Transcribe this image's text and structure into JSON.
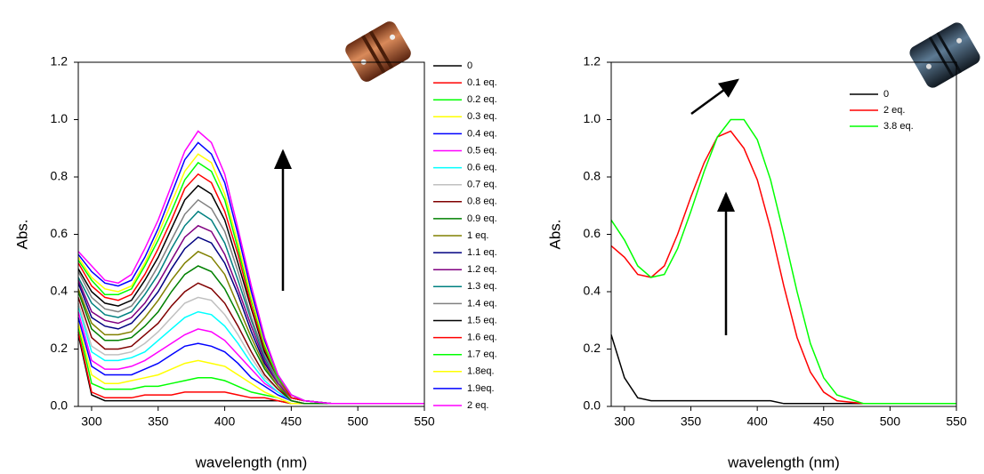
{
  "chart_data": [
    {
      "type": "line",
      "x_label": "wavelength (nm)",
      "y_label": "Abs.",
      "xlim": [
        290,
        550
      ],
      "ylim": [
        0,
        1.2
      ],
      "xticks": [
        300,
        350,
        400,
        450,
        500,
        550
      ],
      "yticks": [
        {
          "value": 0,
          "label": "0.0"
        },
        0.2,
        0.4,
        0.6,
        0.8,
        {
          "value": 1,
          "label": "1.0"
        },
        1.2
      ],
      "legend": "outside right",
      "x": [
        290,
        300,
        310,
        320,
        330,
        340,
        350,
        360,
        370,
        380,
        390,
        400,
        410,
        420,
        430,
        440,
        450,
        460,
        480,
        550
      ],
      "series": [
        {
          "name": "0",
          "color": "#000000",
          "values": [
            0.25,
            0.04,
            0.02,
            0.02,
            0.02,
            0.02,
            0.02,
            0.02,
            0.02,
            0.02,
            0.02,
            0.02,
            0.02,
            0.02,
            0.02,
            0.02,
            0.01,
            0.01,
            0.01,
            0.01
          ]
        },
        {
          "name": "0.1 eq.",
          "color": "#ff0000",
          "values": [
            0.26,
            0.05,
            0.03,
            0.03,
            0.03,
            0.04,
            0.04,
            0.04,
            0.05,
            0.05,
            0.05,
            0.05,
            0.04,
            0.03,
            0.03,
            0.02,
            0.01,
            0.01,
            0.01,
            0.01
          ]
        },
        {
          "name": "0.2 eq.",
          "color": "#00ff00",
          "values": [
            0.28,
            0.08,
            0.06,
            0.06,
            0.06,
            0.07,
            0.07,
            0.08,
            0.09,
            0.1,
            0.1,
            0.09,
            0.07,
            0.05,
            0.04,
            0.03,
            0.01,
            0.01,
            0.01,
            0.01
          ]
        },
        {
          "name": "0.3 eq.",
          "color": "#ffff00",
          "values": [
            0.29,
            0.11,
            0.08,
            0.08,
            0.09,
            0.1,
            0.11,
            0.13,
            0.15,
            0.16,
            0.15,
            0.14,
            0.11,
            0.08,
            0.05,
            0.03,
            0.01,
            0.01,
            0.01,
            0.01
          ]
        },
        {
          "name": "0.4 eq.",
          "color": "#0000ff",
          "values": [
            0.31,
            0.14,
            0.11,
            0.11,
            0.11,
            0.13,
            0.15,
            0.18,
            0.21,
            0.22,
            0.21,
            0.19,
            0.15,
            0.1,
            0.07,
            0.04,
            0.02,
            0.01,
            0.01,
            0.01
          ]
        },
        {
          "name": "0.5 eq.",
          "color": "#ff00ff",
          "values": [
            0.33,
            0.16,
            0.13,
            0.13,
            0.14,
            0.16,
            0.19,
            0.22,
            0.25,
            0.27,
            0.26,
            0.23,
            0.18,
            0.13,
            0.08,
            0.05,
            0.02,
            0.01,
            0.01,
            0.01
          ]
        },
        {
          "name": "0.6 eq.",
          "color": "#00ffff",
          "values": [
            0.35,
            0.19,
            0.16,
            0.16,
            0.17,
            0.19,
            0.23,
            0.27,
            0.31,
            0.33,
            0.32,
            0.28,
            0.22,
            0.15,
            0.09,
            0.05,
            0.02,
            0.01,
            0.01,
            0.01
          ]
        },
        {
          "name": "0.7 eq.",
          "color": "#c0c0c0",
          "values": [
            0.36,
            0.21,
            0.18,
            0.18,
            0.19,
            0.22,
            0.26,
            0.31,
            0.36,
            0.38,
            0.37,
            0.32,
            0.25,
            0.17,
            0.1,
            0.06,
            0.02,
            0.01,
            0.01,
            0.01
          ]
        },
        {
          "name": "0.8 eq.",
          "color": "#800000",
          "values": [
            0.38,
            0.24,
            0.2,
            0.2,
            0.21,
            0.25,
            0.29,
            0.35,
            0.4,
            0.43,
            0.41,
            0.36,
            0.28,
            0.19,
            0.11,
            0.06,
            0.02,
            0.01,
            0.01,
            0.01
          ]
        },
        {
          "name": "0.9 eq.",
          "color": "#008000",
          "values": [
            0.4,
            0.27,
            0.23,
            0.23,
            0.24,
            0.28,
            0.33,
            0.4,
            0.46,
            0.49,
            0.47,
            0.41,
            0.32,
            0.22,
            0.13,
            0.07,
            0.02,
            0.01,
            0.01,
            0.01
          ]
        },
        {
          "name": "1 eq.",
          "color": "#808000",
          "values": [
            0.41,
            0.29,
            0.25,
            0.25,
            0.26,
            0.31,
            0.37,
            0.44,
            0.5,
            0.54,
            0.52,
            0.46,
            0.35,
            0.24,
            0.14,
            0.07,
            0.03,
            0.02,
            0.01,
            0.01
          ]
        },
        {
          "name": "1.1 eq.",
          "color": "#000080",
          "values": [
            0.43,
            0.31,
            0.28,
            0.27,
            0.29,
            0.34,
            0.4,
            0.48,
            0.55,
            0.59,
            0.57,
            0.5,
            0.39,
            0.26,
            0.15,
            0.08,
            0.03,
            0.02,
            0.01,
            0.01
          ]
        },
        {
          "name": "1.2 eq.",
          "color": "#800080",
          "values": [
            0.44,
            0.33,
            0.3,
            0.29,
            0.31,
            0.36,
            0.43,
            0.51,
            0.59,
            0.63,
            0.61,
            0.53,
            0.41,
            0.28,
            0.16,
            0.08,
            0.03,
            0.02,
            0.01,
            0.01
          ]
        },
        {
          "name": "1.3 eq.",
          "color": "#008080",
          "values": [
            0.45,
            0.36,
            0.32,
            0.31,
            0.33,
            0.39,
            0.46,
            0.55,
            0.63,
            0.68,
            0.65,
            0.57,
            0.44,
            0.3,
            0.17,
            0.09,
            0.03,
            0.02,
            0.01,
            0.01
          ]
        },
        {
          "name": "1.4 eq.",
          "color": "#808080",
          "values": [
            0.47,
            0.38,
            0.34,
            0.33,
            0.35,
            0.41,
            0.49,
            0.58,
            0.67,
            0.72,
            0.69,
            0.61,
            0.47,
            0.31,
            0.18,
            0.09,
            0.03,
            0.02,
            0.01,
            0.01
          ]
        },
        {
          "name": "1.5 eq.",
          "color": "#000000",
          "values": [
            0.48,
            0.4,
            0.36,
            0.35,
            0.37,
            0.44,
            0.52,
            0.62,
            0.72,
            0.77,
            0.74,
            0.65,
            0.5,
            0.34,
            0.19,
            0.1,
            0.03,
            0.02,
            0.01,
            0.01
          ]
        },
        {
          "name": "1.6 eq.",
          "color": "#ff0000",
          "values": [
            0.5,
            0.42,
            0.38,
            0.37,
            0.39,
            0.46,
            0.55,
            0.65,
            0.76,
            0.81,
            0.78,
            0.68,
            0.53,
            0.35,
            0.2,
            0.1,
            0.03,
            0.02,
            0.01,
            0.01
          ]
        },
        {
          "name": "1.7 eq.",
          "color": "#00ff00",
          "values": [
            0.51,
            0.44,
            0.39,
            0.39,
            0.41,
            0.49,
            0.58,
            0.68,
            0.79,
            0.85,
            0.82,
            0.72,
            0.55,
            0.37,
            0.21,
            0.1,
            0.04,
            0.02,
            0.01,
            0.01
          ]
        },
        {
          "name": "1.8eq.",
          "color": "#ffff00",
          "values": [
            0.52,
            0.45,
            0.41,
            0.4,
            0.42,
            0.5,
            0.6,
            0.71,
            0.82,
            0.88,
            0.85,
            0.74,
            0.57,
            0.38,
            0.22,
            0.11,
            0.04,
            0.02,
            0.01,
            0.01
          ]
        },
        {
          "name": "1.9eq.",
          "color": "#0000ff",
          "values": [
            0.53,
            0.47,
            0.43,
            0.42,
            0.44,
            0.52,
            0.62,
            0.74,
            0.86,
            0.92,
            0.88,
            0.78,
            0.6,
            0.4,
            0.23,
            0.11,
            0.04,
            0.02,
            0.01,
            0.01
          ]
        },
        {
          "name": "2 eq.",
          "color": "#ff00ff",
          "values": [
            0.54,
            0.49,
            0.44,
            0.43,
            0.46,
            0.55,
            0.65,
            0.77,
            0.89,
            0.96,
            0.92,
            0.81,
            0.62,
            0.42,
            0.24,
            0.11,
            0.04,
            0.02,
            0.01,
            0.01
          ]
        }
      ]
    },
    {
      "type": "line",
      "x_label": "wavelength (nm)",
      "y_label": "Abs.",
      "xlim": [
        290,
        550
      ],
      "ylim": [
        0,
        1.2
      ],
      "xticks": [
        300,
        350,
        400,
        450,
        500,
        550
      ],
      "yticks": [
        {
          "value": 0,
          "label": "0.0"
        },
        0.2,
        0.4,
        0.6,
        0.8,
        {
          "value": 1,
          "label": "1.0"
        },
        1.2
      ],
      "legend": "upper right",
      "x": [
        290,
        300,
        310,
        320,
        330,
        340,
        350,
        360,
        370,
        380,
        390,
        400,
        410,
        420,
        430,
        440,
        450,
        460,
        480,
        500,
        550
      ],
      "series": [
        {
          "name": "0",
          "color": "#000000",
          "values": [
            0.25,
            0.1,
            0.03,
            0.02,
            0.02,
            0.02,
            0.02,
            0.02,
            0.02,
            0.02,
            0.02,
            0.02,
            0.02,
            0.01,
            0.01,
            0.01,
            0.01,
            0.01,
            0.01,
            0.01,
            0.01
          ]
        },
        {
          "name": "2 eq.",
          "color": "#ff0000",
          "values": [
            0.56,
            0.52,
            0.46,
            0.45,
            0.49,
            0.6,
            0.73,
            0.85,
            0.94,
            0.96,
            0.9,
            0.79,
            0.62,
            0.42,
            0.24,
            0.12,
            0.05,
            0.02,
            0.01,
            0.01,
            0.01
          ]
        },
        {
          "name": "3.8 eq.",
          "color": "#00ff00",
          "values": [
            0.65,
            0.58,
            0.49,
            0.45,
            0.46,
            0.55,
            0.68,
            0.82,
            0.94,
            1.0,
            1.0,
            0.93,
            0.79,
            0.6,
            0.4,
            0.22,
            0.1,
            0.04,
            0.01,
            0.01,
            0.01
          ]
        }
      ]
    }
  ]
}
